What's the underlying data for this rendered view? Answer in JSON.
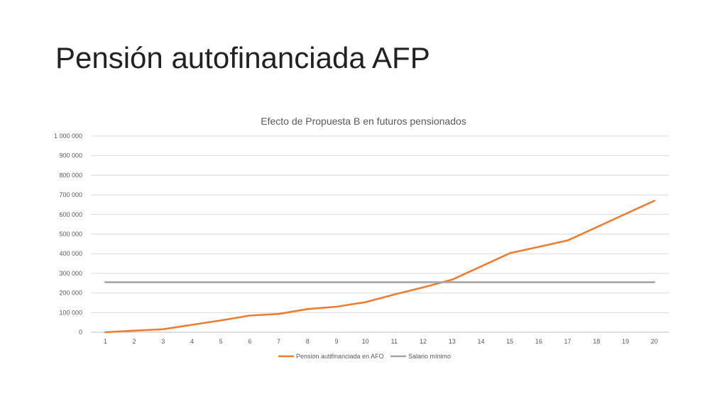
{
  "slide": {
    "title": "Pensión autofinanciada AFP"
  },
  "chart_data": {
    "type": "line",
    "title": "Efecto de Propuesta B en futuros pensionados",
    "xlabel": "",
    "ylabel": "",
    "categories": [
      "1",
      "2",
      "3",
      "4",
      "5",
      "6",
      "7",
      "8",
      "9",
      "10",
      "11",
      "12",
      "13",
      "14",
      "15",
      "16",
      "17",
      "18",
      "19",
      "20"
    ],
    "ylim": [
      0,
      1000000
    ],
    "ytick_values": [
      0,
      100000,
      200000,
      300000,
      400000,
      500000,
      600000,
      700000,
      800000,
      900000,
      1000000
    ],
    "ytick_labels": [
      "0",
      "100 000",
      "200 000",
      "300 000",
      "400 000",
      "500 000",
      "600 000",
      "700 000",
      "800 000",
      "900 000",
      "1 000 000"
    ],
    "grid": true,
    "legend_position": "bottom",
    "series": [
      {
        "name": "Pension autifinanciada en AFO",
        "color": "#ED7D31",
        "values": [
          0,
          8000,
          15000,
          38000,
          60000,
          85000,
          93000,
          118000,
          130000,
          153000,
          192000,
          228000,
          268000,
          335000,
          403000,
          435000,
          468000,
          535000,
          603000,
          670000
        ]
      },
      {
        "name": "Salario mínimo",
        "color": "#A5A5A5",
        "values": [
          255000,
          255000,
          255000,
          255000,
          255000,
          255000,
          255000,
          255000,
          255000,
          255000,
          255000,
          255000,
          255000,
          255000,
          255000,
          255000,
          255000,
          255000,
          255000,
          255000
        ]
      }
    ]
  }
}
